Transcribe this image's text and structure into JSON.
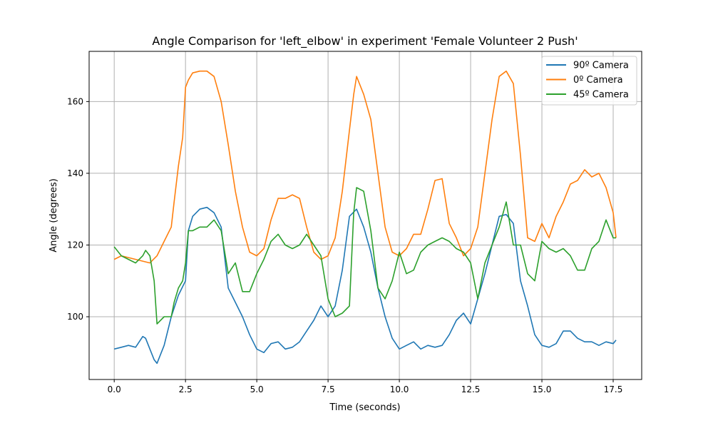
{
  "chart_data": {
    "type": "line",
    "title": "Angle Comparison for 'left_elbow' in experiment 'Female Volunteer 2 Push'",
    "xlabel": "Time (seconds)",
    "ylabel": "Angle (degrees)",
    "xlim": [
      -0.88,
      18.5
    ],
    "ylim": [
      82.5,
      174
    ],
    "xticks": [
      0.0,
      2.5,
      5.0,
      7.5,
      10.0,
      12.5,
      15.0,
      17.5
    ],
    "xtick_labels": [
      "0.0",
      "2.5",
      "5.0",
      "7.5",
      "10.0",
      "12.5",
      "15.0",
      "17.5"
    ],
    "yticks": [
      100,
      120,
      140,
      160
    ],
    "ytick_labels": [
      "100",
      "120",
      "140",
      "160"
    ],
    "grid": true,
    "legend_position": "top-right",
    "series": [
      {
        "name": "90º Camera",
        "color": "#1f77b4",
        "x": [
          0.0,
          0.25,
          0.5,
          0.75,
          1.0,
          1.1,
          1.25,
          1.4,
          1.5,
          1.75,
          2.0,
          2.25,
          2.5,
          2.6,
          2.75,
          3.0,
          3.25,
          3.5,
          3.75,
          4.0,
          4.25,
          4.5,
          4.75,
          5.0,
          5.25,
          5.5,
          5.75,
          6.0,
          6.25,
          6.5,
          6.75,
          7.0,
          7.25,
          7.5,
          7.75,
          8.0,
          8.25,
          8.5,
          8.75,
          9.0,
          9.25,
          9.5,
          9.75,
          10.0,
          10.25,
          10.5,
          10.75,
          11.0,
          11.25,
          11.5,
          11.75,
          12.0,
          12.25,
          12.5,
          12.75,
          13.0,
          13.25,
          13.5,
          13.75,
          14.0,
          14.25,
          14.5,
          14.75,
          15.0,
          15.25,
          15.5,
          15.75,
          16.0,
          16.25,
          16.5,
          16.75,
          17.0,
          17.25,
          17.5,
          17.6
        ],
        "values": [
          91,
          91.5,
          92,
          91.5,
          94.5,
          94,
          91,
          88,
          87,
          92,
          100,
          106,
          110,
          124,
          128,
          130,
          130.5,
          129,
          125,
          108,
          104,
          100,
          95,
          91,
          90,
          92.5,
          93,
          91,
          91.5,
          93,
          96,
          99,
          103,
          100,
          103,
          113,
          128,
          130,
          125,
          118,
          108,
          100,
          94,
          91,
          92,
          93,
          91,
          92,
          91.5,
          92,
          95,
          99,
          101,
          98,
          105,
          112,
          120,
          128,
          128.5,
          126,
          110,
          103,
          95,
          92,
          91.5,
          92.5,
          96,
          96,
          94,
          93,
          93,
          92,
          93,
          92.5,
          93.5
        ]
      },
      {
        "name": "0º Camera",
        "color": "#ff7f0e",
        "x": [
          0.0,
          0.25,
          0.5,
          0.75,
          1.0,
          1.25,
          1.5,
          1.75,
          2.0,
          2.1,
          2.25,
          2.4,
          2.5,
          2.6,
          2.75,
          3.0,
          3.25,
          3.5,
          3.75,
          4.0,
          4.25,
          4.5,
          4.75,
          5.0,
          5.25,
          5.5,
          5.75,
          6.0,
          6.25,
          6.5,
          6.75,
          7.0,
          7.25,
          7.5,
          7.75,
          8.0,
          8.25,
          8.4,
          8.5,
          8.75,
          9.0,
          9.25,
          9.5,
          9.75,
          10.0,
          10.25,
          10.5,
          10.75,
          11.0,
          11.25,
          11.5,
          11.75,
          12.0,
          12.25,
          12.5,
          12.75,
          13.0,
          13.25,
          13.5,
          13.75,
          14.0,
          14.25,
          14.5,
          14.75,
          15.0,
          15.25,
          15.5,
          15.75,
          16.0,
          16.25,
          16.5,
          16.75,
          17.0,
          17.25,
          17.5,
          17.6
        ],
        "values": [
          116,
          117,
          116.5,
          116,
          115.5,
          115,
          117,
          121,
          125,
          132,
          142,
          150,
          164,
          166,
          168,
          168.5,
          168.5,
          167,
          160,
          148,
          135,
          125,
          118,
          117,
          119,
          127,
          133,
          133,
          134,
          133,
          125,
          118,
          116,
          117,
          122,
          135,
          152,
          162,
          167,
          162,
          155,
          140,
          125,
          118,
          117,
          119,
          123,
          123,
          130,
          138,
          138.5,
          126,
          122,
          117,
          119,
          125,
          140,
          155,
          167,
          168.5,
          165,
          145,
          122,
          121,
          126,
          122,
          128,
          132,
          137,
          138,
          141,
          139,
          140,
          136,
          129,
          122
        ]
      },
      {
        "name": "45º Camera",
        "color": "#2ca02c",
        "x": [
          0.0,
          0.25,
          0.5,
          0.75,
          1.0,
          1.1,
          1.25,
          1.4,
          1.5,
          1.75,
          2.0,
          2.1,
          2.25,
          2.4,
          2.5,
          2.6,
          2.75,
          3.0,
          3.25,
          3.5,
          3.75,
          4.0,
          4.25,
          4.5,
          4.75,
          5.0,
          5.25,
          5.5,
          5.75,
          6.0,
          6.25,
          6.5,
          6.75,
          7.0,
          7.25,
          7.5,
          7.75,
          8.0,
          8.25,
          8.4,
          8.5,
          8.75,
          9.0,
          9.25,
          9.5,
          9.75,
          10.0,
          10.25,
          10.5,
          10.75,
          11.0,
          11.25,
          11.5,
          11.75,
          12.0,
          12.25,
          12.5,
          12.75,
          13.0,
          13.25,
          13.5,
          13.75,
          14.0,
          14.25,
          14.5,
          14.75,
          15.0,
          15.25,
          15.5,
          15.75,
          16.0,
          16.25,
          16.5,
          16.75,
          17.0,
          17.25,
          17.5,
          17.6
        ],
        "values": [
          119.5,
          117,
          116,
          115,
          117,
          118.5,
          117,
          110,
          98,
          100,
          100,
          104,
          108,
          110,
          115,
          124,
          124,
          125,
          125,
          127,
          124,
          112,
          115,
          107,
          107,
          112,
          116,
          121,
          123,
          120,
          119,
          120,
          123,
          120,
          117,
          105,
          100,
          101,
          103,
          129,
          136,
          135,
          124,
          108,
          105,
          110,
          118,
          112,
          113,
          118,
          120,
          121,
          122,
          121,
          119,
          118,
          115,
          105,
          115,
          120,
          125,
          132,
          120,
          120,
          112,
          110,
          121,
          119,
          118,
          119,
          117,
          113,
          113,
          119,
          121,
          127,
          122,
          122
        ]
      }
    ]
  }
}
